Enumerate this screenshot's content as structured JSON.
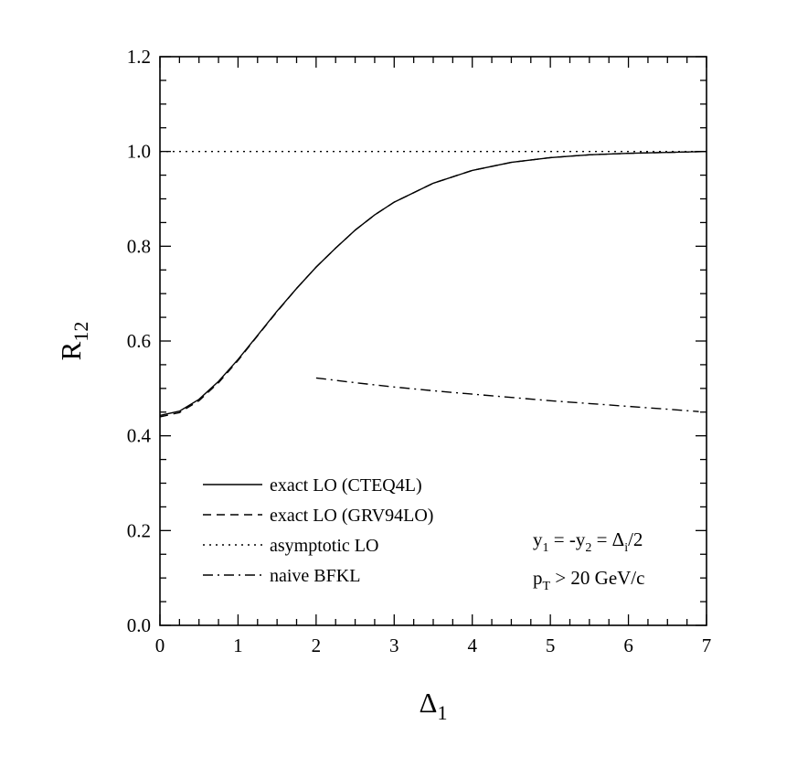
{
  "chart_data": {
    "type": "line",
    "xlabel": {
      "main": "Δ",
      "sub": "1"
    },
    "ylabel": {
      "main": "R",
      "sub": "12"
    },
    "xlim": [
      0,
      7
    ],
    "ylim": [
      0,
      1.2
    ],
    "x_ticks": [
      "0",
      "1",
      "2",
      "3",
      "4",
      "5",
      "6",
      "7"
    ],
    "y_ticks": [
      "0.0",
      "0.2",
      "0.4",
      "0.6",
      "0.8",
      "1.0",
      "1.2"
    ],
    "grid": false,
    "legend_position": "bottom-left",
    "series": [
      {
        "name": "exact LO (CTEQ4L)",
        "style": "solid",
        "x": [
          0,
          0.25,
          0.5,
          0.75,
          1.0,
          1.25,
          1.5,
          1.75,
          2.0,
          2.25,
          2.5,
          2.75,
          3.0,
          3.5,
          4.0,
          4.5,
          5.0,
          5.5,
          6.0,
          6.5,
          7.0
        ],
        "y": [
          0.443,
          0.452,
          0.477,
          0.515,
          0.561,
          0.612,
          0.663,
          0.711,
          0.756,
          0.796,
          0.834,
          0.866,
          0.893,
          0.933,
          0.96,
          0.977,
          0.987,
          0.993,
          0.996,
          0.998,
          1.0
        ]
      },
      {
        "name": "exact LO (GRV94LO)",
        "style": "dashed",
        "x": [
          0,
          0.25,
          0.5,
          0.75,
          1.0,
          1.25,
          1.5,
          1.75,
          2.0,
          2.25,
          2.5,
          2.75,
          3.0,
          3.5,
          4.0,
          4.5,
          5.0,
          5.5,
          6.0,
          6.5,
          7.0
        ],
        "y": [
          0.44,
          0.449,
          0.474,
          0.512,
          0.559,
          0.611,
          0.662,
          0.711,
          0.756,
          0.796,
          0.834,
          0.866,
          0.893,
          0.933,
          0.96,
          0.977,
          0.987,
          0.993,
          0.996,
          0.998,
          1.0
        ]
      },
      {
        "name": "asymptotic LO",
        "style": "dotted",
        "x": [
          0,
          7
        ],
        "y": [
          1.0,
          1.0
        ]
      },
      {
        "name": "naive BFKL",
        "style": "dashdot",
        "x": [
          2.0,
          2.5,
          3.0,
          3.5,
          4.0,
          4.5,
          5.0,
          5.5,
          6.0,
          6.5,
          6.9
        ],
        "y": [
          0.522,
          0.512,
          0.503,
          0.495,
          0.488,
          0.481,
          0.474,
          0.468,
          0.462,
          0.456,
          0.451
        ]
      }
    ],
    "annotations": [
      {
        "parts": [
          [
            "y",
            ""
          ],
          [
            "1",
            "sub"
          ],
          [
            " = -y",
            ""
          ],
          [
            "2",
            "sub"
          ],
          [
            " = Δ",
            ""
          ],
          [
            "i",
            "sub"
          ],
          [
            "/2",
            ""
          ]
        ]
      },
      {
        "parts": [
          [
            "p",
            ""
          ],
          [
            "T",
            "sub"
          ],
          [
            " > 20 GeV/c",
            ""
          ]
        ]
      }
    ]
  }
}
